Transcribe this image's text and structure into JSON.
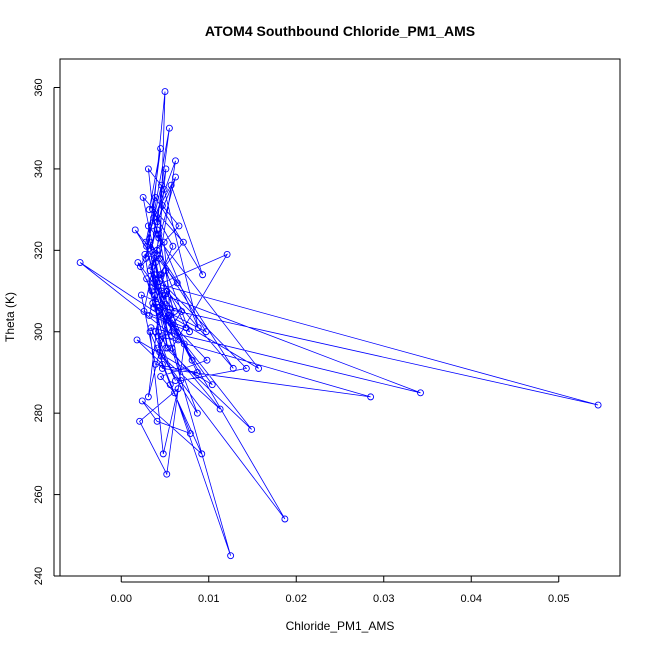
{
  "chart_data": {
    "type": "line",
    "title": "ATOM4 Southbound Chloride_PM1_AMS",
    "xlabel": "Chloride_PM1_AMS",
    "ylabel": "Theta (K)",
    "xlim": [
      -0.007,
      0.057
    ],
    "ylim": [
      240,
      367
    ],
    "xticks": [
      "0.00",
      "0.01",
      "0.02",
      "0.03",
      "0.04",
      "0.05"
    ],
    "xtick_values": [
      0.0,
      0.01,
      0.02,
      0.03,
      0.04,
      0.05
    ],
    "yticks": [
      "240",
      "260",
      "280",
      "300",
      "320",
      "340",
      "360"
    ],
    "ytick_values": [
      240,
      260,
      280,
      300,
      320,
      340,
      360
    ],
    "series_color": "#0000ff",
    "grid": false,
    "series": [
      {
        "x": [
          0.0032,
          0.0045,
          0.0028,
          0.0055,
          0.0041,
          0.0062,
          0.0035,
          0.0048,
          0.0025,
          0.0071,
          0.0039,
          0.0052,
          -0.0047,
          0.0065,
          0.0043,
          0.0036,
          0.0121,
          0.0058,
          0.0029,
          0.0044,
          0.0545,
          0.0037,
          0.0081,
          0.0049,
          0.0342,
          0.0034,
          0.0062,
          0.0042,
          0.0285,
          0.0047,
          0.0031,
          0.0157,
          0.0055,
          0.0038,
          0.0143,
          0.0068,
          0.0041,
          0.0128,
          0.0052,
          0.0039,
          0.0113,
          0.0046,
          0.0187,
          0.0057,
          0.0033,
          0.0125,
          0.0061,
          0.0045,
          0.0098,
          0.0036,
          0.0149,
          0.0051,
          0.0029,
          0.0087,
          0.0044,
          0.0038,
          0.0072,
          0.0052,
          0.0021,
          0.0065,
          0.0048,
          0.0033,
          0.0079,
          0.0041,
          0.0024,
          0.0092,
          0.0056,
          0.0047,
          0.0018,
          0.0104,
          0.0043,
          0.0031,
          0.0054,
          0.0087,
          0.0039,
          0.0023,
          0.0069,
          0.0042,
          0.0047,
          0.0035,
          0.0019,
          0.0061,
          0.0044,
          0.0032,
          0.0078,
          0.0051,
          0.0037,
          0.0027,
          0.0049,
          0.0058,
          0.0039,
          0.0016,
          0.0064,
          0.0046,
          0.0033,
          0.0097,
          0.0042,
          0.0053,
          0.0038,
          0.0026,
          0.0074,
          0.0045,
          0.0059,
          0.0036,
          0.0031,
          0.0049,
          0.0088,
          0.0041,
          0.0022,
          0.0066,
          0.0047,
          0.0034,
          0.0051,
          0.0043,
          0.0037,
          0.0057,
          0.0093,
          0.0039,
          0.0028,
          0.0062,
          0.0044,
          0.005,
          0.0035,
          0.0046,
          0.004
        ],
        "y": [
          330,
          345,
          318,
          350,
          327,
          338,
          316,
          308,
          333,
          322,
          313,
          303,
          317,
          298,
          324,
          311,
          319,
          296,
          321,
          306,
          282,
          312,
          293,
          309,
          285,
          301,
          288,
          299,
          284,
          291,
          326,
          291,
          304,
          314,
          291,
          288,
          320,
          291,
          310,
          300,
          281,
          294,
          254,
          302,
          315,
          245,
          285,
          289,
          293,
          307,
          276,
          296,
          313,
          280,
          295,
          309,
          297,
          265,
          278,
          286,
          270,
          300,
          275,
          278,
          283,
          270,
          287,
          292,
          298,
          287,
          305,
          284,
          304,
          290,
          292,
          309,
          305,
          296,
          299,
          310,
          317,
          305,
          314,
          304,
          300,
          315,
          306,
          319,
          322,
          299,
          317,
          325,
          312,
          310,
          322,
          300,
          306,
          296,
          318,
          305,
          301,
          314,
          321,
          330,
          340,
          335,
          301,
          325,
          316,
          326,
          331,
          320,
          340,
          323,
          328,
          336,
          314,
          333,
          322,
          342,
          318,
          359,
          326,
          336,
          324
        ]
      }
    ]
  }
}
